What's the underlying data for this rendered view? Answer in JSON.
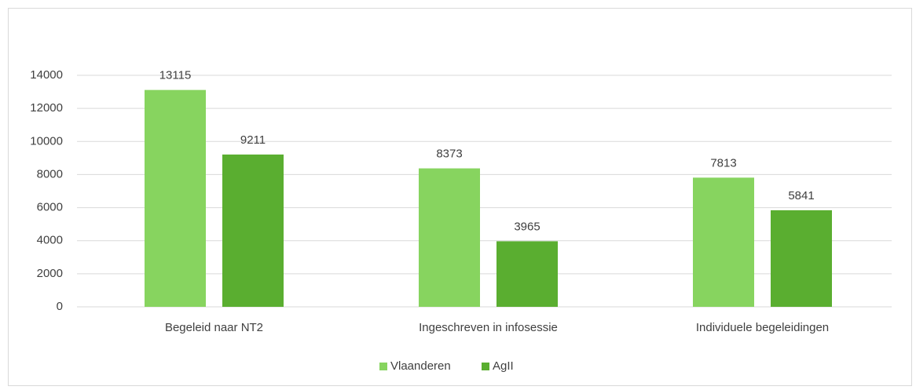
{
  "chart_data": {
    "type": "bar",
    "categories": [
      "Begeleid naar NT2",
      "Ingeschreven in infosessie",
      "Individuele begeleidingen"
    ],
    "series": [
      {
        "name": "Vlaanderen",
        "color": "#87d45f",
        "values": [
          13115,
          8373,
          7813
        ]
      },
      {
        "name": "AgII",
        "color": "#5aae30",
        "values": [
          9211,
          3965,
          5841
        ]
      }
    ],
    "ylim": [
      0,
      14000
    ],
    "yticks": [
      0,
      2000,
      4000,
      6000,
      8000,
      10000,
      12000,
      14000
    ],
    "grid": true,
    "legend": "bottom"
  }
}
